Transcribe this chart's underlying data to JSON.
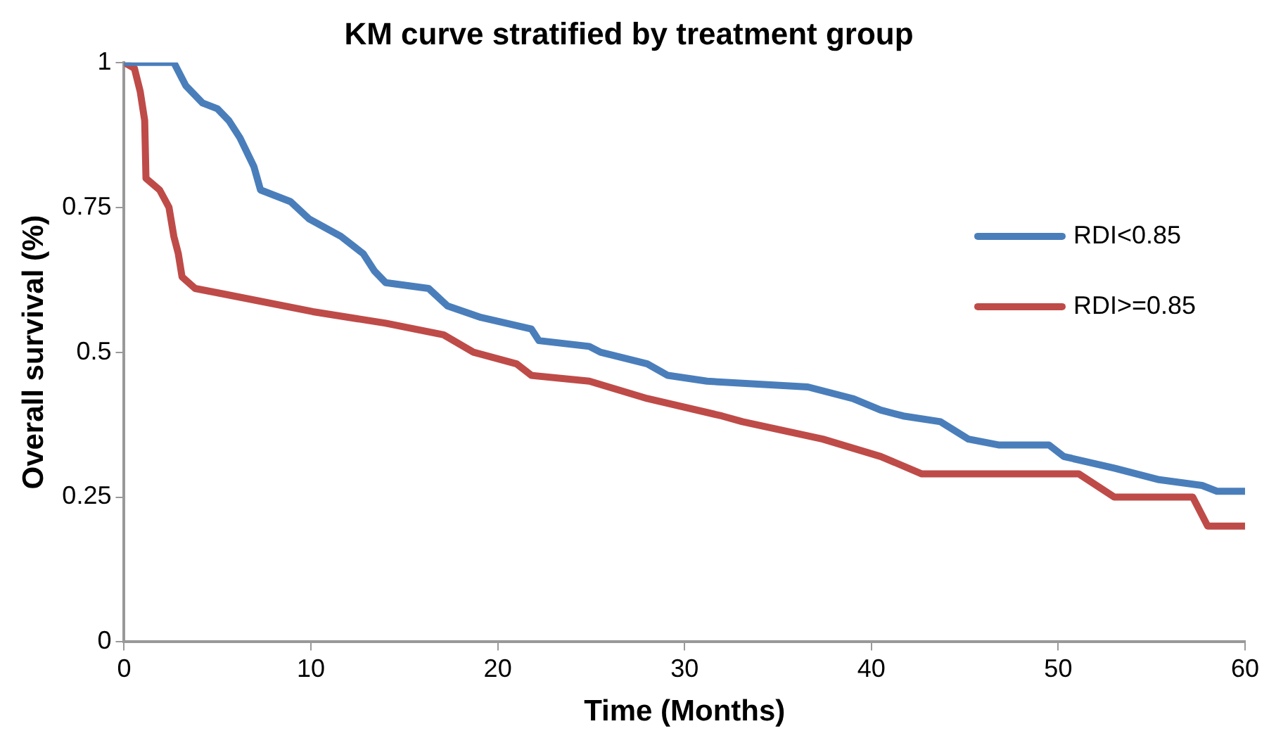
{
  "chart_data": {
    "type": "line",
    "title": "KM curve stratified by treatment group",
    "xlabel": "Time (Months)",
    "ylabel": "Overall survival (%)",
    "xlim": [
      0,
      60
    ],
    "xticks": [
      0,
      10,
      20,
      30,
      40,
      50,
      60
    ],
    "ylim": [
      0,
      1
    ],
    "yticks": [
      0,
      0.25,
      0.5,
      0.75,
      1
    ],
    "grid": false,
    "legend": "right",
    "marker": "none",
    "line_style": "solid",
    "series": [
      {
        "name": "RDI<0.85",
        "color": "#4a7ebb",
        "x": [
          0,
          2.66,
          3.3,
          4.2,
          5.0,
          5.6,
          6.2,
          6.95,
          7.3,
          8.9,
          9.9,
          11.6,
          12.8,
          13.4,
          14,
          16.3,
          17.3,
          19.1,
          21.8,
          22.2,
          24.9,
          25.5,
          28,
          29.1,
          31.2,
          36.6,
          39,
          40.5,
          41.7,
          43.7,
          45.2,
          46.8,
          49.5,
          50.3,
          53,
          55.4,
          57.7,
          58.5,
          60
        ],
        "values": [
          1,
          1,
          0.96,
          0.93,
          0.92,
          0.9,
          0.87,
          0.82,
          0.78,
          0.76,
          0.73,
          0.7,
          0.67,
          0.64,
          0.62,
          0.61,
          0.58,
          0.56,
          0.54,
          0.52,
          0.51,
          0.5,
          0.48,
          0.46,
          0.45,
          0.44,
          0.42,
          0.4,
          0.39,
          0.38,
          0.35,
          0.34,
          0.34,
          0.32,
          0.3,
          0.28,
          0.27,
          0.26,
          0.26
        ]
      },
      {
        "name": "RDI>=0.85",
        "color": "#be4b48",
        "x": [
          0,
          0.55,
          0.86,
          1.1,
          1.17,
          1.9,
          2.4,
          2.66,
          2.9,
          3.1,
          3.8,
          5.4,
          10.1,
          14,
          17.1,
          18.7,
          21,
          21.8,
          24.9,
          28,
          32,
          33.1,
          37.4,
          40.5,
          42.7,
          50.7,
          51.1,
          53,
          56.2,
          57.2,
          58,
          58.9,
          60
        ],
        "values": [
          1,
          0.99,
          0.95,
          0.9,
          0.8,
          0.78,
          0.75,
          0.7,
          0.67,
          0.63,
          0.61,
          0.6,
          0.57,
          0.55,
          0.53,
          0.5,
          0.48,
          0.46,
          0.45,
          0.42,
          0.39,
          0.38,
          0.35,
          0.32,
          0.29,
          0.29,
          0.29,
          0.25,
          0.25,
          0.25,
          0.2,
          0.2,
          0.2
        ]
      }
    ]
  }
}
